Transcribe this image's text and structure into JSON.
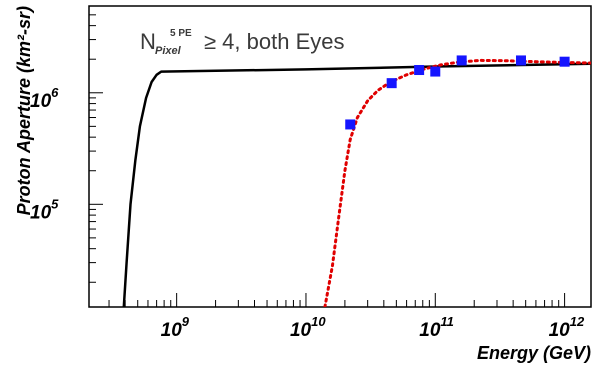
{
  "chart_data": {
    "type": "line",
    "xscale": "log",
    "yscale": "log",
    "xlim": [
      210000000.0,
      1600000000000.0
    ],
    "ylim": [
      12000.0,
      6000000.0
    ],
    "grid": false,
    "xlabel": "Energy (GeV)",
    "ylabel": "Proton Aperture (km²-sr)",
    "annotation": {
      "base": "N",
      "subscript": "Pixel",
      "superscript": "5 PE",
      "text": "≥ 4, both Eyes"
    },
    "x_ticks": [
      {
        "value": 1000000000.0,
        "base": "10",
        "exp": "9"
      },
      {
        "value": 10000000000.0,
        "base": "10",
        "exp": "10"
      },
      {
        "value": 100000000000.0,
        "base": "10",
        "exp": "11"
      },
      {
        "value": 1000000000000.0,
        "base": "10",
        "exp": "12"
      }
    ],
    "y_ticks": [
      {
        "value": 100000.0,
        "base": "10",
        "exp": "5"
      },
      {
        "value": 1000000.0,
        "base": "10",
        "exp": "6"
      }
    ],
    "series": [
      {
        "style": "solid",
        "color": "#000000",
        "x": [
          390000000.0,
          410000000.0,
          440000000.0,
          480000000.0,
          520000000.0,
          580000000.0,
          640000000.0,
          700000000.0,
          760000000.0,
          10000000000.0,
          100000000000.0,
          1600000000000.0
        ],
        "y": [
          12000.0,
          30000.0,
          100000.0,
          250000.0,
          500000.0,
          900000.0,
          1250000.0,
          1450000.0,
          1550000.0,
          1620000.0,
          1720000.0,
          1820000.0
        ]
      },
      {
        "style": "dotted",
        "color": "#e00000",
        "x": [
          14000000000.0,
          16000000000.0,
          18000000000.0,
          20000000000.0,
          22000000000.0,
          25000000000.0,
          30000000000.0,
          36000000000.0,
          45000000000.0,
          60000000000.0,
          80000000000.0,
          110000000000.0,
          150000000000.0,
          220000000000.0,
          350000000000.0,
          600000000000.0,
          1000000000000.0,
          1600000000000.0
        ],
        "y": [
          12000.0,
          28000.0,
          80000.0,
          200000.0,
          380000.0,
          600000.0,
          850000.0,
          1050000.0,
          1250000.0,
          1450000.0,
          1620000.0,
          1780000.0,
          1880000.0,
          1950000.0,
          1940000.0,
          1900000.0,
          1870000.0,
          1850000.0
        ]
      },
      {
        "style": "markers",
        "color": "#1515ff",
        "x": [
          22000000000.0,
          46000000000.0,
          75000000000.0,
          100000000000.0,
          160000000000.0,
          460000000000.0,
          1000000000000.0
        ],
        "y": [
          520000.0,
          1220000.0,
          1600000.0,
          1550000.0,
          1950000.0,
          1950000.0,
          1900000.0
        ]
      }
    ]
  }
}
